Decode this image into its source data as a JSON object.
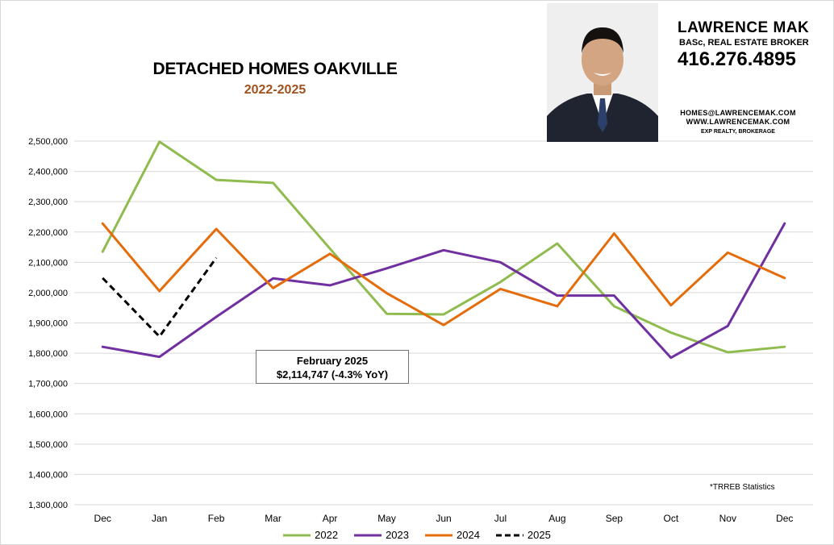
{
  "title": "DETACHED HOMES OAKVILLE",
  "subtitle": "2022-2025",
  "agent": {
    "name": "LAWRENCE MAK",
    "credentials": "BASc, REAL ESTATE BROKER",
    "phone": "416.276.4895",
    "email": "HOMES@LAWRENCEMAK.COM",
    "website": "WWW.LAWRENCEMAK.COM",
    "brokerage": "EXP REALTY, BROKERAGE"
  },
  "source_note": "*TRREB Statistics",
  "callout": {
    "line1": "February 2025",
    "line2": "$2,114,747 (-4.3% YoY)"
  },
  "colors": {
    "2022": "#8fbb4f",
    "2023": "#7030a0",
    "2024": "#e46c0a",
    "2025": "#000000",
    "title_accent": "#a0521e"
  },
  "chart_data": {
    "type": "line",
    "title": "DETACHED HOMES OAKVILLE",
    "subtitle": "2022-2025",
    "categories": [
      "Dec",
      "Jan",
      "Feb",
      "Mar",
      "Apr",
      "May",
      "Jun",
      "Jul",
      "Aug",
      "Sep",
      "Oct",
      "Nov",
      "Dec"
    ],
    "ylim": [
      1300000,
      2500000
    ],
    "yticks": [
      1300000,
      1400000,
      1500000,
      1600000,
      1700000,
      1800000,
      1900000,
      2000000,
      2100000,
      2200000,
      2300000,
      2400000,
      2500000
    ],
    "ytick_labels": [
      "1,300,000",
      "1,400,000",
      "1,500,000",
      "1,600,000",
      "1,700,000",
      "1,800,000",
      "1,900,000",
      "2,000,000",
      "2,100,000",
      "2,200,000",
      "2,300,000",
      "2,400,000",
      "2,500,000"
    ],
    "grid": true,
    "legend": "bottom",
    "series": [
      {
        "name": "2022",
        "style": "solid",
        "values": [
          2135000,
          2498000,
          2372000,
          2362000,
          2145000,
          1930000,
          1928000,
          2035000,
          2162000,
          1955000,
          1868000,
          1803000,
          1821000
        ]
      },
      {
        "name": "2023",
        "style": "solid",
        "values": [
          1821000,
          1788000,
          1920000,
          2047000,
          2024000,
          2080000,
          2140000,
          2100000,
          1990000,
          1990000,
          1785000,
          1890000,
          2228000
        ]
      },
      {
        "name": "2024",
        "style": "solid",
        "values": [
          2228000,
          2005000,
          2210000,
          2015000,
          2128000,
          1998000,
          1893000,
          2012000,
          1955000,
          2195000,
          1958000,
          2132000,
          2048000
        ]
      },
      {
        "name": "2025",
        "style": "dashed",
        "values": [
          2048000,
          1855000,
          2114747,
          null,
          null,
          null,
          null,
          null,
          null,
          null,
          null,
          null,
          null
        ]
      }
    ]
  }
}
